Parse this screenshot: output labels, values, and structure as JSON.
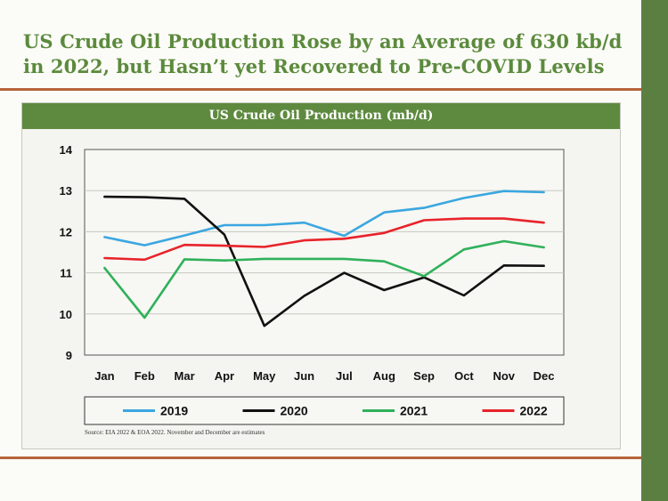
{
  "slide": {
    "headline": "US Crude Oil Production Rose by an Average of 630 kb/d in 2022, but Hasn’t yet Recovered to Pre-COVID Levels",
    "source": "Source: EIA 2022 & EOA 2022. November and December are estimates",
    "colors": {
      "headline": "#5b8a3c",
      "title_bar": "#5e8a3f",
      "side_bar": "#5b7f41",
      "rule": "#b5643a"
    }
  },
  "chart_data": {
    "type": "line",
    "title": "US Crude Oil Production (mb/d)",
    "categories": [
      "Jan",
      "Feb",
      "Mar",
      "Apr",
      "May",
      "Jun",
      "Jul",
      "Aug",
      "Sep",
      "Oct",
      "Nov",
      "Dec"
    ],
    "ylim": [
      9,
      14
    ],
    "yticks": [
      9,
      10,
      11,
      12,
      13,
      14
    ],
    "grid": true,
    "legend_position": "bottom",
    "series": [
      {
        "name": "2019",
        "color": "#3aa7e0",
        "values": [
          11.87,
          11.67,
          11.91,
          12.16,
          12.16,
          12.22,
          11.9,
          12.47,
          12.58,
          12.82,
          12.99,
          12.96
        ]
      },
      {
        "name": "2020",
        "color": "#111111",
        "values": [
          12.85,
          12.84,
          12.8,
          11.93,
          9.71,
          10.44,
          11.0,
          10.58,
          10.89,
          10.45,
          11.18,
          11.17
        ]
      },
      {
        "name": "2021",
        "color": "#2fb15a",
        "values": [
          11.12,
          9.91,
          11.33,
          11.3,
          11.34,
          11.34,
          11.34,
          11.28,
          10.92,
          11.57,
          11.77,
          11.62
        ]
      },
      {
        "name": "2022",
        "color": "#e8232a",
        "values": [
          11.36,
          11.32,
          11.68,
          11.66,
          11.63,
          11.79,
          11.83,
          11.97,
          12.28,
          12.32,
          12.32,
          12.22
        ]
      }
    ]
  }
}
